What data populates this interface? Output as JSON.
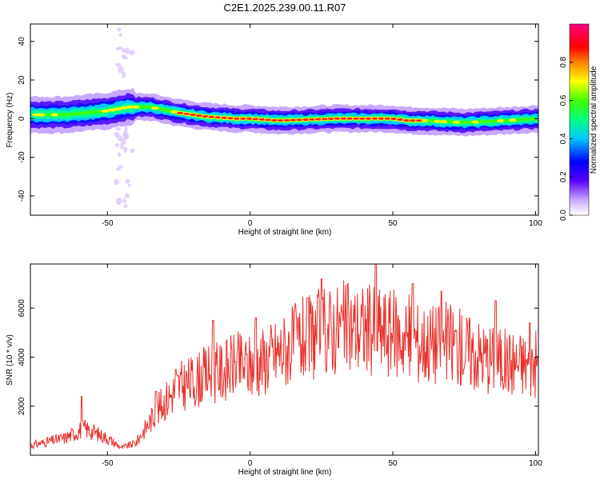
{
  "title": "C2E1.2025.239.00.11.R07",
  "chart_data": [
    {
      "type": "heatmap",
      "xlabel": "Height of straight line (km)",
      "ylabel": "Frequency (Hz)",
      "xlim": [
        -77,
        101
      ],
      "ylim": [
        -50,
        49
      ],
      "x_ticks": [
        -50,
        0,
        50,
        100
      ],
      "y_ticks": [
        -40,
        -20,
        0,
        20,
        40
      ],
      "colorbar": {
        "label": "Normalized spectral amplitude",
        "range": [
          0,
          1
        ],
        "ticks": [
          0.0,
          0.2,
          0.4,
          0.6,
          0.8
        ],
        "tick_labels": [
          "0.0",
          "0.2",
          "0.4",
          "0.6",
          "0.8"
        ]
      },
      "ridge_center_hz": {
        "x": [
          -77,
          -65,
          -50,
          -43,
          -40,
          -35,
          -25,
          -15,
          -5,
          0,
          10,
          30,
          50,
          55,
          60,
          75,
          90,
          101
        ],
        "y": [
          2,
          2,
          4,
          6,
          6,
          6,
          3,
          1,
          0,
          0,
          -1,
          0,
          0,
          -1,
          -1,
          -2,
          -1,
          0
        ]
      }
    },
    {
      "type": "line",
      "xlabel": "Height of straight line (km)",
      "ylabel": "SNR (10 * v/v)",
      "xlim": [
        -77,
        101
      ],
      "ylim": [
        0,
        7800
      ],
      "x_ticks": [
        -50,
        0,
        50,
        100
      ],
      "y_ticks": [
        2000,
        4000,
        6000
      ],
      "color": "#e8312b",
      "envelope": {
        "x": [
          -77,
          -65,
          -58,
          -50,
          -45,
          -40,
          -35,
          -30,
          -25,
          -20,
          -15,
          -10,
          -5,
          0,
          5,
          10,
          20,
          30,
          40,
          50,
          60,
          70,
          80,
          90,
          101
        ],
        "y": [
          400,
          700,
          1100,
          700,
          300,
          500,
          1400,
          2200,
          2800,
          3000,
          3300,
          3400,
          3700,
          3600,
          3900,
          4200,
          4800,
          5200,
          5200,
          5000,
          4600,
          4600,
          4100,
          3800,
          3700
        ]
      },
      "peaks": {
        "x": [
          -59,
          -33,
          -26,
          -13,
          2,
          20,
          25,
          44,
          57,
          67,
          86,
          98
        ],
        "y": [
          2400,
          2600,
          3500,
          5500,
          5600,
          6400,
          7200,
          7800,
          7000,
          6700,
          6300,
          5400
        ]
      }
    }
  ]
}
